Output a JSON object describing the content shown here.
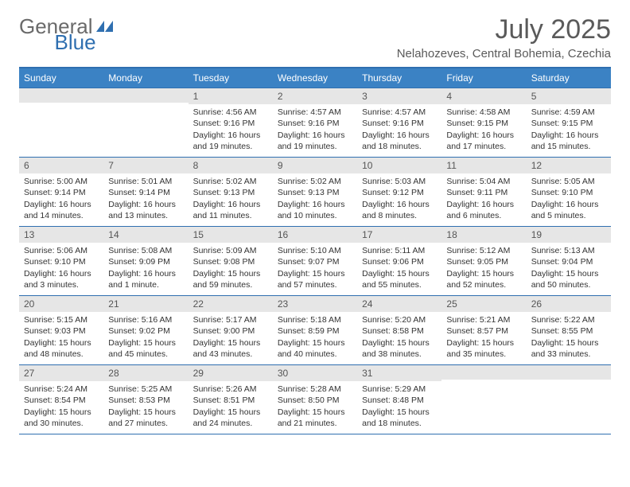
{
  "logo": {
    "part1": "General",
    "part2": "Blue"
  },
  "title": "July 2025",
  "subtitle": "Nelahozeves, Central Bohemia, Czechia",
  "colors": {
    "header_bg": "#3b82c4",
    "rule": "#2f6fb0",
    "daynum_bg": "#e6e6e6",
    "text": "#333333",
    "title_text": "#5a5a5a"
  },
  "daysOfWeek": [
    "Sunday",
    "Monday",
    "Tuesday",
    "Wednesday",
    "Thursday",
    "Friday",
    "Saturday"
  ],
  "weeks": [
    [
      {
        "n": "",
        "sunrise": "",
        "sunset": "",
        "day1": "",
        "day2": ""
      },
      {
        "n": "",
        "sunrise": "",
        "sunset": "",
        "day1": "",
        "day2": ""
      },
      {
        "n": "1",
        "sunrise": "Sunrise: 4:56 AM",
        "sunset": "Sunset: 9:16 PM",
        "day1": "Daylight: 16 hours",
        "day2": "and 19 minutes."
      },
      {
        "n": "2",
        "sunrise": "Sunrise: 4:57 AM",
        "sunset": "Sunset: 9:16 PM",
        "day1": "Daylight: 16 hours",
        "day2": "and 19 minutes."
      },
      {
        "n": "3",
        "sunrise": "Sunrise: 4:57 AM",
        "sunset": "Sunset: 9:16 PM",
        "day1": "Daylight: 16 hours",
        "day2": "and 18 minutes."
      },
      {
        "n": "4",
        "sunrise": "Sunrise: 4:58 AM",
        "sunset": "Sunset: 9:15 PM",
        "day1": "Daylight: 16 hours",
        "day2": "and 17 minutes."
      },
      {
        "n": "5",
        "sunrise": "Sunrise: 4:59 AM",
        "sunset": "Sunset: 9:15 PM",
        "day1": "Daylight: 16 hours",
        "day2": "and 15 minutes."
      }
    ],
    [
      {
        "n": "6",
        "sunrise": "Sunrise: 5:00 AM",
        "sunset": "Sunset: 9:14 PM",
        "day1": "Daylight: 16 hours",
        "day2": "and 14 minutes."
      },
      {
        "n": "7",
        "sunrise": "Sunrise: 5:01 AM",
        "sunset": "Sunset: 9:14 PM",
        "day1": "Daylight: 16 hours",
        "day2": "and 13 minutes."
      },
      {
        "n": "8",
        "sunrise": "Sunrise: 5:02 AM",
        "sunset": "Sunset: 9:13 PM",
        "day1": "Daylight: 16 hours",
        "day2": "and 11 minutes."
      },
      {
        "n": "9",
        "sunrise": "Sunrise: 5:02 AM",
        "sunset": "Sunset: 9:13 PM",
        "day1": "Daylight: 16 hours",
        "day2": "and 10 minutes."
      },
      {
        "n": "10",
        "sunrise": "Sunrise: 5:03 AM",
        "sunset": "Sunset: 9:12 PM",
        "day1": "Daylight: 16 hours",
        "day2": "and 8 minutes."
      },
      {
        "n": "11",
        "sunrise": "Sunrise: 5:04 AM",
        "sunset": "Sunset: 9:11 PM",
        "day1": "Daylight: 16 hours",
        "day2": "and 6 minutes."
      },
      {
        "n": "12",
        "sunrise": "Sunrise: 5:05 AM",
        "sunset": "Sunset: 9:10 PM",
        "day1": "Daylight: 16 hours",
        "day2": "and 5 minutes."
      }
    ],
    [
      {
        "n": "13",
        "sunrise": "Sunrise: 5:06 AM",
        "sunset": "Sunset: 9:10 PM",
        "day1": "Daylight: 16 hours",
        "day2": "and 3 minutes."
      },
      {
        "n": "14",
        "sunrise": "Sunrise: 5:08 AM",
        "sunset": "Sunset: 9:09 PM",
        "day1": "Daylight: 16 hours",
        "day2": "and 1 minute."
      },
      {
        "n": "15",
        "sunrise": "Sunrise: 5:09 AM",
        "sunset": "Sunset: 9:08 PM",
        "day1": "Daylight: 15 hours",
        "day2": "and 59 minutes."
      },
      {
        "n": "16",
        "sunrise": "Sunrise: 5:10 AM",
        "sunset": "Sunset: 9:07 PM",
        "day1": "Daylight: 15 hours",
        "day2": "and 57 minutes."
      },
      {
        "n": "17",
        "sunrise": "Sunrise: 5:11 AM",
        "sunset": "Sunset: 9:06 PM",
        "day1": "Daylight: 15 hours",
        "day2": "and 55 minutes."
      },
      {
        "n": "18",
        "sunrise": "Sunrise: 5:12 AM",
        "sunset": "Sunset: 9:05 PM",
        "day1": "Daylight: 15 hours",
        "day2": "and 52 minutes."
      },
      {
        "n": "19",
        "sunrise": "Sunrise: 5:13 AM",
        "sunset": "Sunset: 9:04 PM",
        "day1": "Daylight: 15 hours",
        "day2": "and 50 minutes."
      }
    ],
    [
      {
        "n": "20",
        "sunrise": "Sunrise: 5:15 AM",
        "sunset": "Sunset: 9:03 PM",
        "day1": "Daylight: 15 hours",
        "day2": "and 48 minutes."
      },
      {
        "n": "21",
        "sunrise": "Sunrise: 5:16 AM",
        "sunset": "Sunset: 9:02 PM",
        "day1": "Daylight: 15 hours",
        "day2": "and 45 minutes."
      },
      {
        "n": "22",
        "sunrise": "Sunrise: 5:17 AM",
        "sunset": "Sunset: 9:00 PM",
        "day1": "Daylight: 15 hours",
        "day2": "and 43 minutes."
      },
      {
        "n": "23",
        "sunrise": "Sunrise: 5:18 AM",
        "sunset": "Sunset: 8:59 PM",
        "day1": "Daylight: 15 hours",
        "day2": "and 40 minutes."
      },
      {
        "n": "24",
        "sunrise": "Sunrise: 5:20 AM",
        "sunset": "Sunset: 8:58 PM",
        "day1": "Daylight: 15 hours",
        "day2": "and 38 minutes."
      },
      {
        "n": "25",
        "sunrise": "Sunrise: 5:21 AM",
        "sunset": "Sunset: 8:57 PM",
        "day1": "Daylight: 15 hours",
        "day2": "and 35 minutes."
      },
      {
        "n": "26",
        "sunrise": "Sunrise: 5:22 AM",
        "sunset": "Sunset: 8:55 PM",
        "day1": "Daylight: 15 hours",
        "day2": "and 33 minutes."
      }
    ],
    [
      {
        "n": "27",
        "sunrise": "Sunrise: 5:24 AM",
        "sunset": "Sunset: 8:54 PM",
        "day1": "Daylight: 15 hours",
        "day2": "and 30 minutes."
      },
      {
        "n": "28",
        "sunrise": "Sunrise: 5:25 AM",
        "sunset": "Sunset: 8:53 PM",
        "day1": "Daylight: 15 hours",
        "day2": "and 27 minutes."
      },
      {
        "n": "29",
        "sunrise": "Sunrise: 5:26 AM",
        "sunset": "Sunset: 8:51 PM",
        "day1": "Daylight: 15 hours",
        "day2": "and 24 minutes."
      },
      {
        "n": "30",
        "sunrise": "Sunrise: 5:28 AM",
        "sunset": "Sunset: 8:50 PM",
        "day1": "Daylight: 15 hours",
        "day2": "and 21 minutes."
      },
      {
        "n": "31",
        "sunrise": "Sunrise: 5:29 AM",
        "sunset": "Sunset: 8:48 PM",
        "day1": "Daylight: 15 hours",
        "day2": "and 18 minutes."
      },
      {
        "n": "",
        "sunrise": "",
        "sunset": "",
        "day1": "",
        "day2": ""
      },
      {
        "n": "",
        "sunrise": "",
        "sunset": "",
        "day1": "",
        "day2": ""
      }
    ]
  ]
}
